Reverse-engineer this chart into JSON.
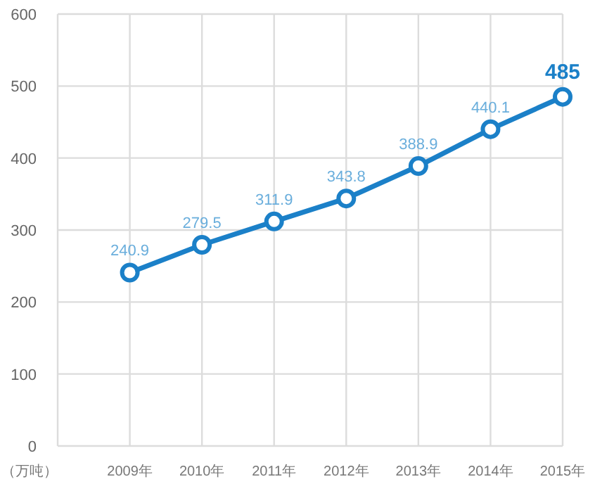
{
  "chart_data": {
    "type": "line",
    "ylabel": "（万吨）",
    "categories": [
      "2009年",
      "2010年",
      "2011年",
      "2012年",
      "2013年",
      "2014年",
      "2015年"
    ],
    "values": [
      240.9,
      279.5,
      311.9,
      343.8,
      388.9,
      440.1,
      485
    ],
    "color": "#1b80c8",
    "ylim": [
      0,
      600
    ],
    "yticks": [
      0,
      100,
      200,
      300,
      400,
      500,
      600
    ],
    "grid": true,
    "marker": "circle",
    "data_labels": true
  }
}
